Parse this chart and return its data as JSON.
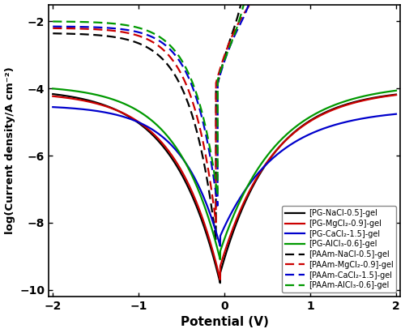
{
  "xlabel": "Potential (V)",
  "ylabel": "log(Current density/A cm⁻²)",
  "xlim": [
    -2.05,
    2.05
  ],
  "ylim": [
    -10.2,
    -1.5
  ],
  "xticks": [
    -2,
    -1,
    0,
    1,
    2
  ],
  "yticks": [
    -10,
    -8,
    -6,
    -4,
    -2
  ],
  "colors": [
    "#000000",
    "#cc0000",
    "#0000cc",
    "#009900"
  ],
  "legend_solid": [
    "[PG-NaCl-0.5]-gel",
    "[PG-MgCl₂-0.9]-gel",
    "[PG-CaCl₂-1.5]-gel",
    "[PG-AlCl₃-0.6]-gel"
  ],
  "legend_dashed": [
    "[PAAm-NaCl-0.5]-gel",
    "[PAAm-MgCl₂-0.9]-gel",
    "[PAAm-CaCl₂-1.5]-gel",
    "[PAAm-AlCl₃-0.6]-gel"
  ],
  "background": "#ffffff",
  "lw_solid": 1.6,
  "lw_dashed": 1.6
}
